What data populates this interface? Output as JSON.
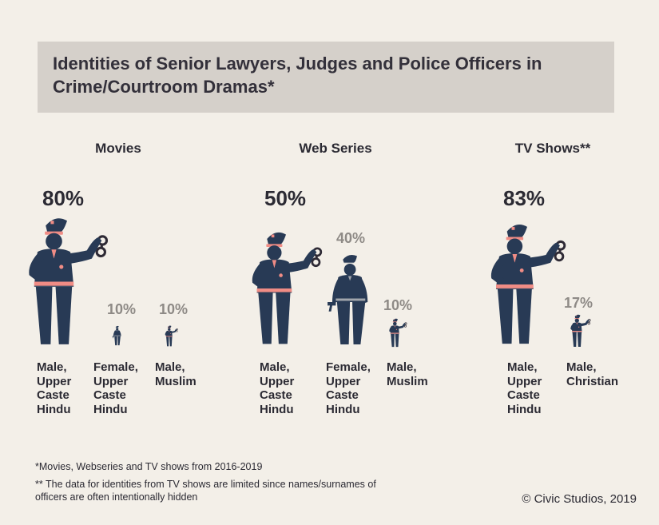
{
  "title": "Identities of Senior Lawyers, Judges and Police Officers in Crime/Courtroom Dramas*",
  "chart_data": [
    {
      "type": "pictogram",
      "title": "Movies",
      "categories": [
        "Male,\nUpper\nCaste\nHindu",
        "Female,\nUpper\nCaste\nHindu",
        "Male,\nMuslim"
      ],
      "values": [
        80,
        10,
        10
      ],
      "value_labels": [
        "80%",
        "10%",
        "10%"
      ],
      "colors": [
        "#2e2a35",
        "#f08c85",
        "#2b5a4e"
      ]
    },
    {
      "type": "pictogram",
      "title": "Web Series",
      "categories": [
        "Male,\nUpper\nCaste\nHindu",
        "Female,\nUpper\nCaste\nHindu",
        "Male,\nMuslim"
      ],
      "values": [
        50,
        40,
        10
      ],
      "value_labels": [
        "50%",
        "40%",
        "10%"
      ],
      "colors": [
        "#2e2a35",
        "#f08c85",
        "#2b5a4e"
      ]
    },
    {
      "type": "pictogram",
      "title": "TV Shows**",
      "categories": [
        "Male,\nUpper\nCaste\nHindu",
        "Male,\nChristian"
      ],
      "values": [
        83,
        17
      ],
      "value_labels": [
        "83%",
        "17%"
      ],
      "colors": [
        "#2e2a35",
        "#283a55"
      ]
    }
  ],
  "footnotes": {
    "note1": "*Movies, Webseries and TV shows from 2016-2019",
    "note2": "** The data for identities from TV shows are limited since names/surnames of officers are often intentionally hidden"
  },
  "credit": "© Civic Studios, 2019"
}
